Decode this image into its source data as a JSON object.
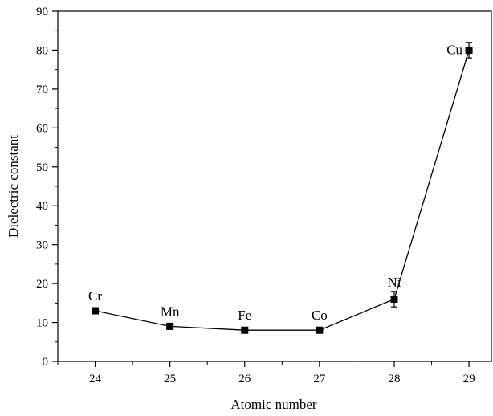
{
  "chart_data": {
    "type": "line",
    "xlabel": "Atomic number",
    "ylabel": "Dielectric constant",
    "xlim": [
      23.5,
      29.3
    ],
    "ylim": [
      0,
      90
    ],
    "xticks": [
      "24",
      "25",
      "26",
      "27",
      "28",
      "29"
    ],
    "yticks": [
      "0",
      "10",
      "20",
      "30",
      "40",
      "50",
      "60",
      "70",
      "80",
      "90"
    ],
    "grid": false,
    "legend": "none",
    "marker": "square",
    "line_color": "#000000",
    "series": [
      {
        "x": [
          24,
          25,
          26,
          27,
          28,
          29
        ],
        "values": [
          13,
          9,
          8,
          8,
          16,
          80
        ],
        "errors": [
          0.5,
          0.5,
          0.6,
          0.6,
          2.0,
          2.0
        ],
        "point_labels": [
          "Cr",
          "Mn",
          "Fe",
          "Co",
          "Ni",
          "Cu"
        ]
      }
    ]
  }
}
